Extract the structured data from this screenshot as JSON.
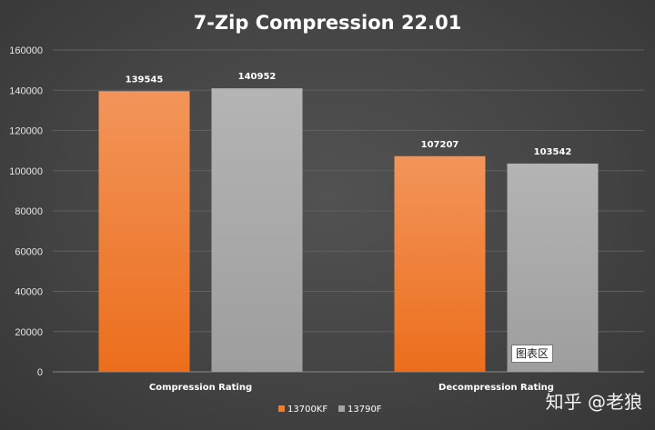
{
  "chart_data": {
    "type": "bar",
    "title": "7-Zip Compression 22.01",
    "categories": [
      "Compression Rating",
      "Decompression Rating"
    ],
    "series": [
      {
        "name": "13700KF",
        "values": [
          139545,
          107207
        ],
        "color": "#ED7D31"
      },
      {
        "name": "13790F",
        "values": [
          140952,
          103542
        ],
        "color": "#A5A5A5"
      }
    ],
    "ylim": [
      0,
      160000
    ],
    "yticks": [
      0,
      20000,
      40000,
      60000,
      80000,
      100000,
      120000,
      140000,
      160000
    ],
    "grid": true,
    "legend_position": "bottom"
  },
  "tooltip": "图表区",
  "watermark": "知乎 @老狼"
}
